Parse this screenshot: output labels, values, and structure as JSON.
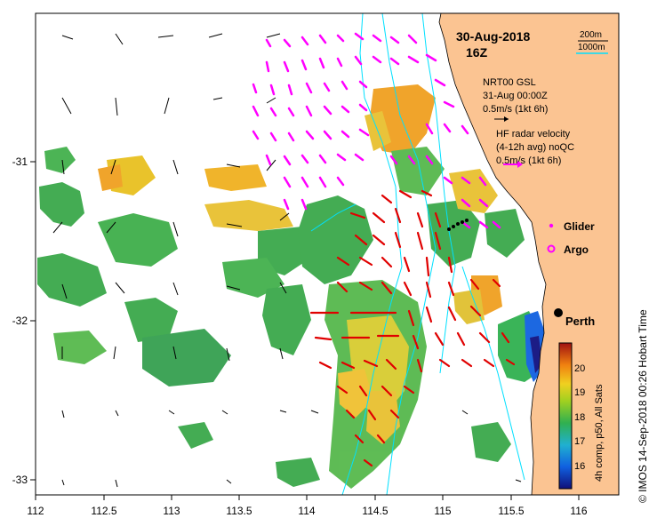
{
  "header": {
    "date": "30-Aug-2018",
    "hour": "16Z"
  },
  "scale": {
    "depth1": "200m",
    "depth2": "1000m"
  },
  "nrt_legend": {
    "line1": "NRT00 GSL",
    "line2": "31-Aug 00:00Z",
    "line3": "0.5m/s (1kt 6h)"
  },
  "hf_legend": {
    "line1": "HF radar velocity",
    "line2": "(4-12h avg) noQC",
    "line3": "0.5m/s (1kt 6h)"
  },
  "markers": {
    "glider": "Glider",
    "argo": "Argo",
    "city": "Perth"
  },
  "colorbar": {
    "label": "4h comp, p50, All Sats",
    "ticks": [
      "20",
      "19",
      "18",
      "17",
      "16"
    ]
  },
  "credit": "© IMOS 14-Sep-2018 00:26 Hobart Time",
  "axes": {
    "x_ticks": [
      "112",
      "112.5",
      "113",
      "113.5",
      "114",
      "114.5",
      "115",
      "115.5",
      "116"
    ],
    "y_ticks": [
      "-31",
      "-32",
      "-33"
    ]
  },
  "colors": {
    "land": "#fbc492",
    "hf_arrow": "#ff00ff",
    "model_arrow": "#ff0000",
    "isobath": "#00e0ff"
  }
}
